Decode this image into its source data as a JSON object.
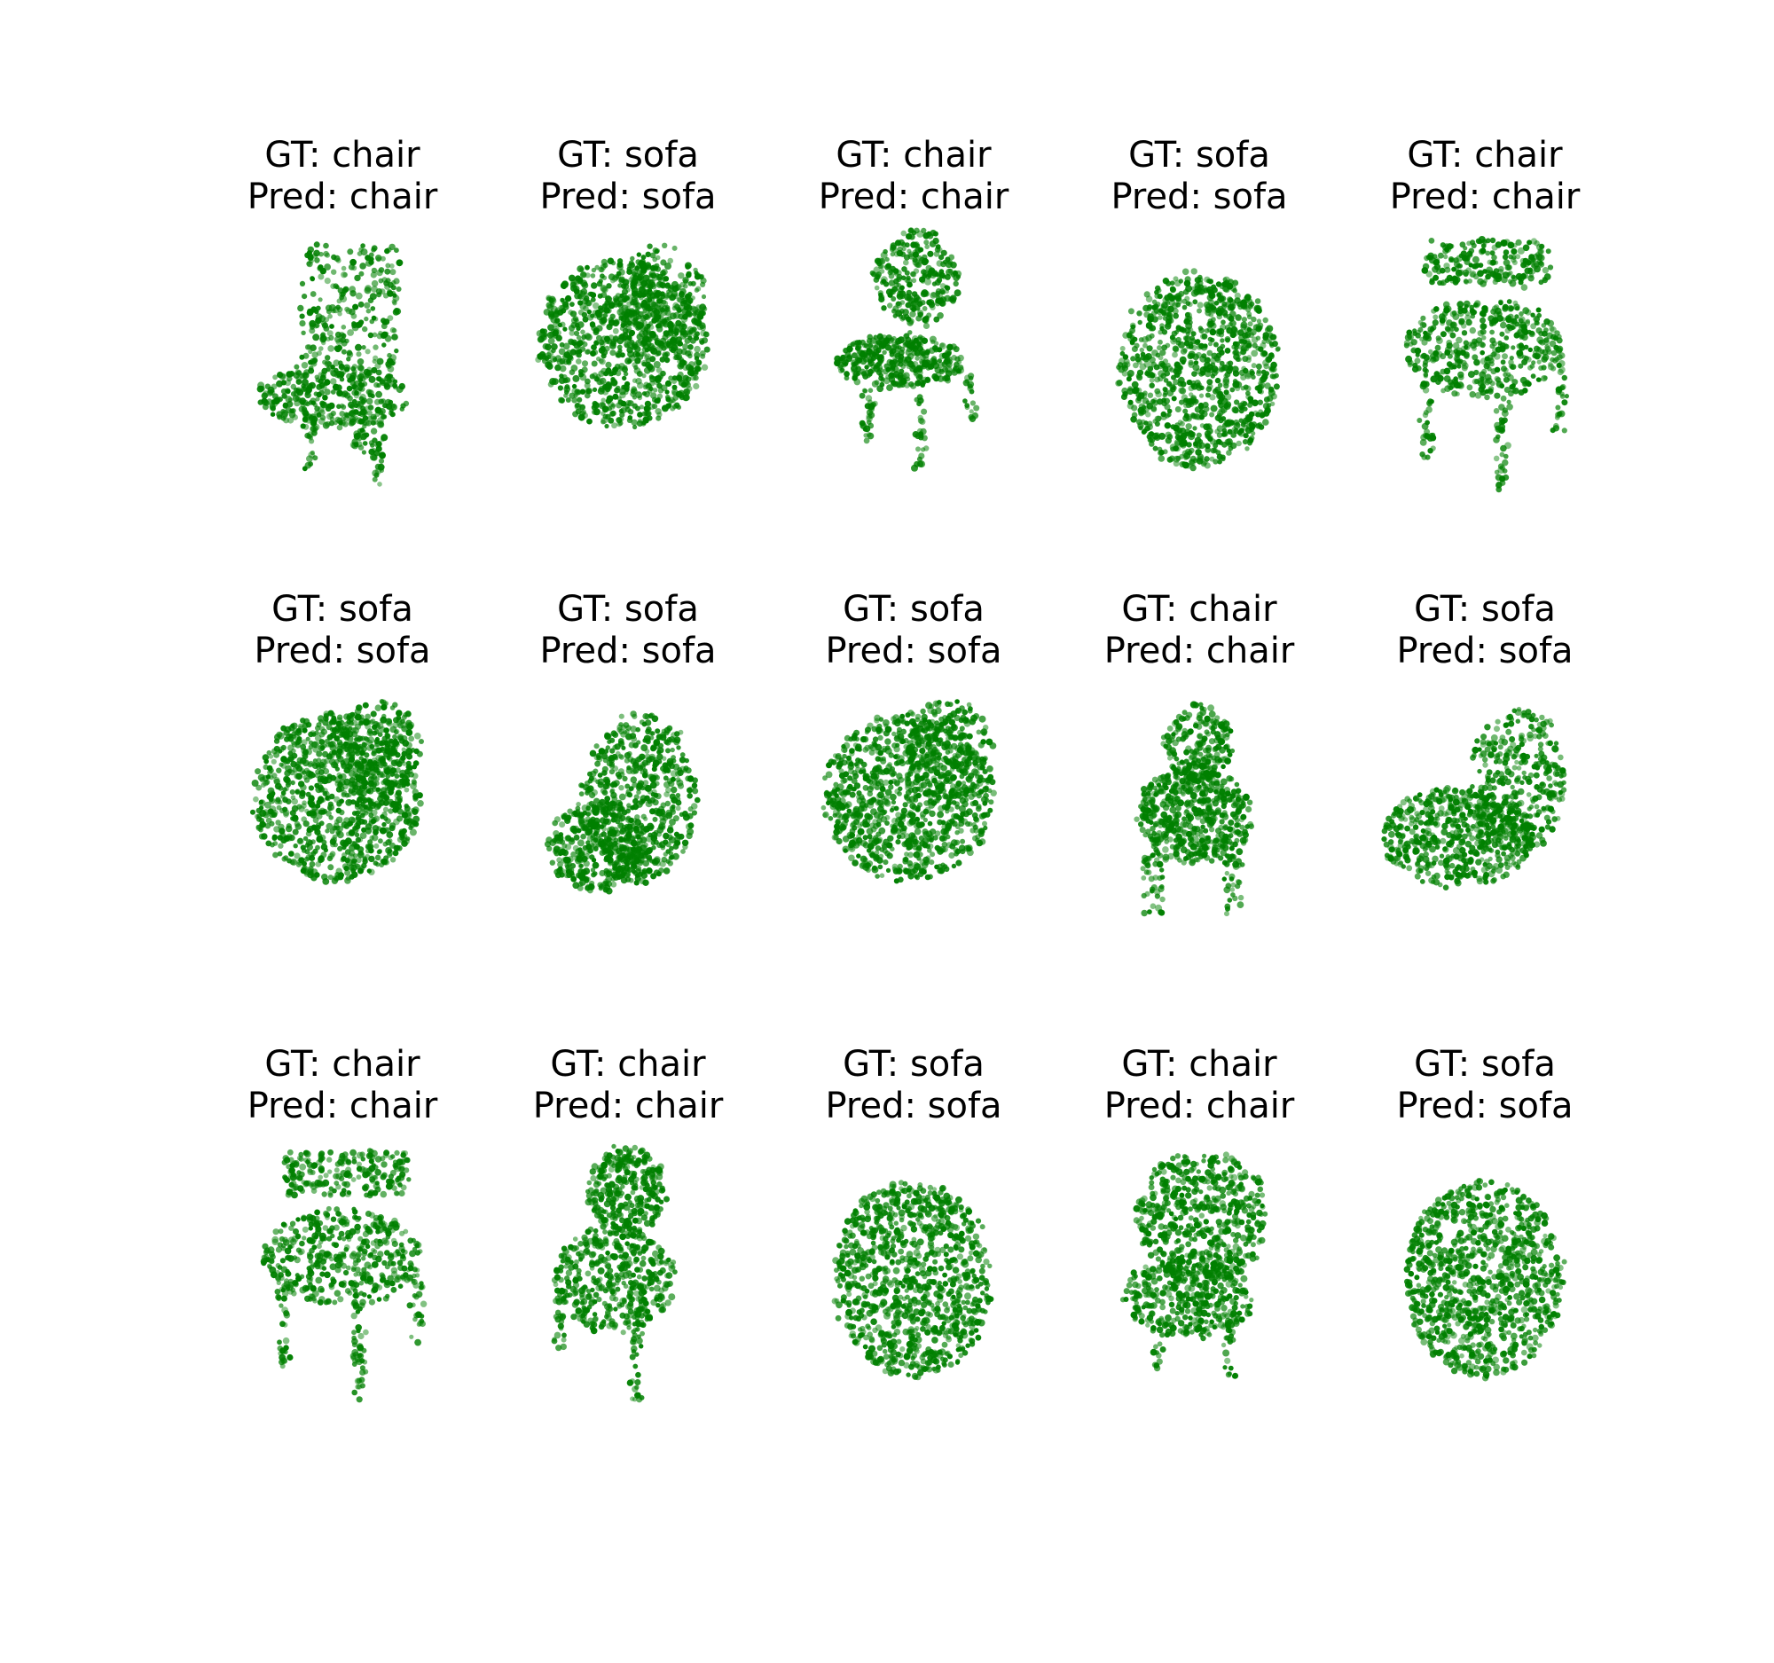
{
  "figure": {
    "point_color": "#008000",
    "panels": [
      {
        "gt_label": "GT: chair",
        "pred_label": "Pred: chair",
        "shape": "chair-frame",
        "seed": 11
      },
      {
        "gt_label": "GT: sofa",
        "pred_label": "Pred: sofa",
        "shape": "sofa-block",
        "seed": 23
      },
      {
        "gt_label": "GT: chair",
        "pred_label": "Pred: chair",
        "shape": "chair-split",
        "seed": 37
      },
      {
        "gt_label": "GT: sofa",
        "pred_label": "Pred: sofa",
        "shape": "sofa-box",
        "seed": 41
      },
      {
        "gt_label": "GT: chair",
        "pred_label": "Pred: chair",
        "shape": "chair-legs",
        "seed": 53
      },
      {
        "gt_label": "GT: sofa",
        "pred_label": "Pred: sofa",
        "shape": "sofa-block",
        "seed": 61
      },
      {
        "gt_label": "GT: sofa",
        "pred_label": "Pred: sofa",
        "shape": "sofa-slant",
        "seed": 71
      },
      {
        "gt_label": "GT: sofa",
        "pred_label": "Pred: sofa",
        "shape": "sofa-block",
        "seed": 83
      },
      {
        "gt_label": "GT: chair",
        "pred_label": "Pred: chair",
        "shape": "chair-round",
        "seed": 97
      },
      {
        "gt_label": "GT: sofa",
        "pred_label": "Pred: sofa",
        "shape": "sofa-v",
        "seed": 101
      },
      {
        "gt_label": "GT: chair",
        "pred_label": "Pred: chair",
        "shape": "chair-legs",
        "seed": 113
      },
      {
        "gt_label": "GT: chair",
        "pred_label": "Pred: chair",
        "shape": "chair-oval",
        "seed": 127
      },
      {
        "gt_label": "GT: sofa",
        "pred_label": "Pred: sofa",
        "shape": "sofa-box",
        "seed": 131
      },
      {
        "gt_label": "GT: chair",
        "pred_label": "Pred: chair",
        "shape": "chair-arch",
        "seed": 139
      },
      {
        "gt_label": "GT: sofa",
        "pred_label": "Pred: sofa",
        "shape": "sofa-box",
        "seed": 149
      }
    ]
  }
}
